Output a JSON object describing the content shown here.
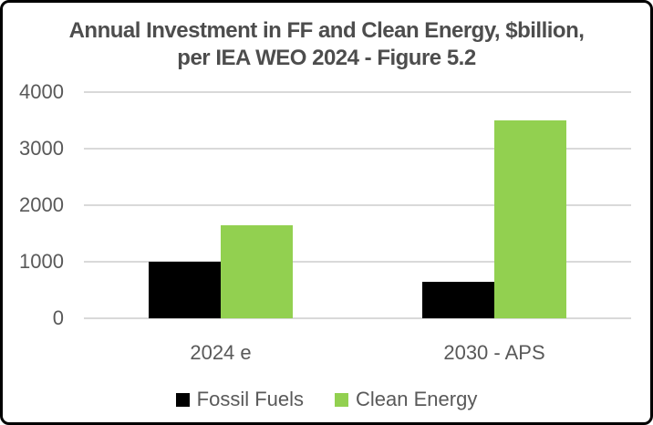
{
  "chart": {
    "title_line1": "Annual Investment in FF and Clean Energy, $billion,",
    "title_line2": "per IEA WEO 2024 - Figure 5.2"
  },
  "chart_data": {
    "type": "bar",
    "title": "Annual Investment in FF and Clean Energy, $billion, per IEA WEO 2024 - Figure 5.2",
    "categories": [
      "2024 e",
      "2030 - APS"
    ],
    "series": [
      {
        "name": "Fossil Fuels",
        "color": "#000000",
        "values": [
          1000,
          650
        ]
      },
      {
        "name": "Clean Energy",
        "color": "#92D050",
        "values": [
          1650,
          3500
        ]
      }
    ],
    "xlabel": "",
    "ylabel": "",
    "ylim": [
      0,
      4000
    ],
    "yticks": [
      0,
      1000,
      2000,
      3000,
      4000
    ],
    "grid": true,
    "legend_position": "bottom",
    "colors": {
      "text": "#595959",
      "title_text": "#4d4d4d",
      "gridline": "#d9d9d9",
      "background": "#ffffff",
      "border": "#000000"
    }
  }
}
